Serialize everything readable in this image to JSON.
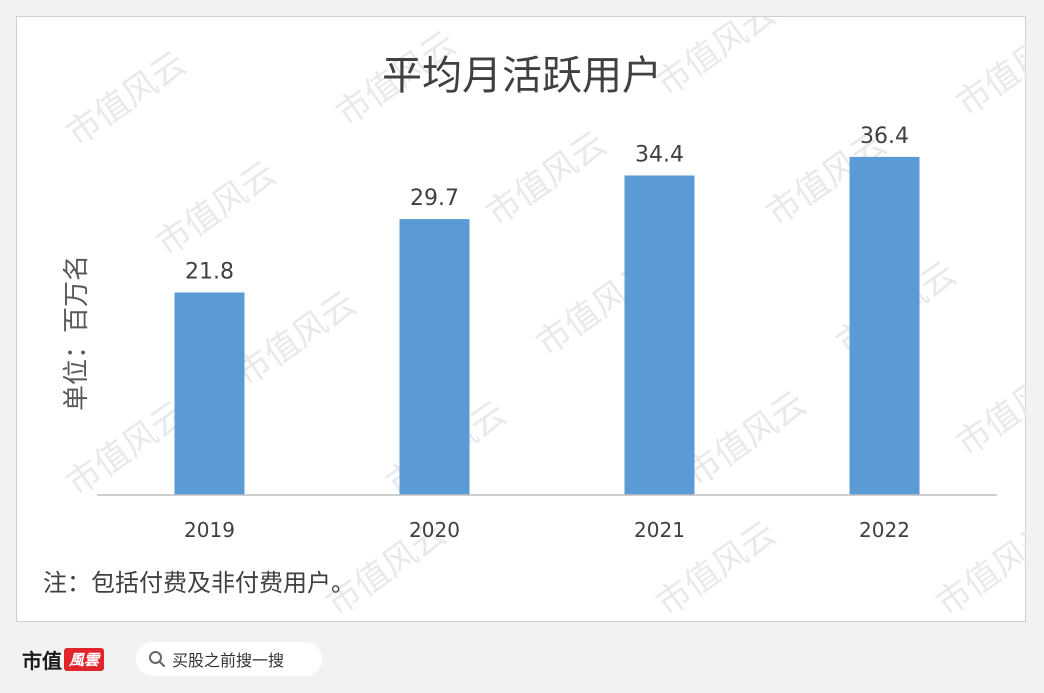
{
  "chart_data": {
    "type": "bar",
    "title": "平均月活跃用户",
    "ylabel": "单位：百万名",
    "xlabel": "",
    "categories": [
      "2019",
      "2020",
      "2021",
      "2022"
    ],
    "values": [
      21.8,
      29.7,
      34.4,
      36.4
    ],
    "data_labels": [
      "21.8",
      "29.7",
      "34.4",
      "36.4"
    ],
    "ylim": [
      0,
      45
    ],
    "grid": false,
    "legend": "none",
    "note": "注：包括付费及非付费用户。",
    "bar_color": "#5b9bd5"
  },
  "watermark": "市值风云",
  "footer": {
    "logo_text": "市值",
    "logo_badge": "風雲",
    "search_icon": "search-icon",
    "search_text": "买股之前搜一搜"
  }
}
